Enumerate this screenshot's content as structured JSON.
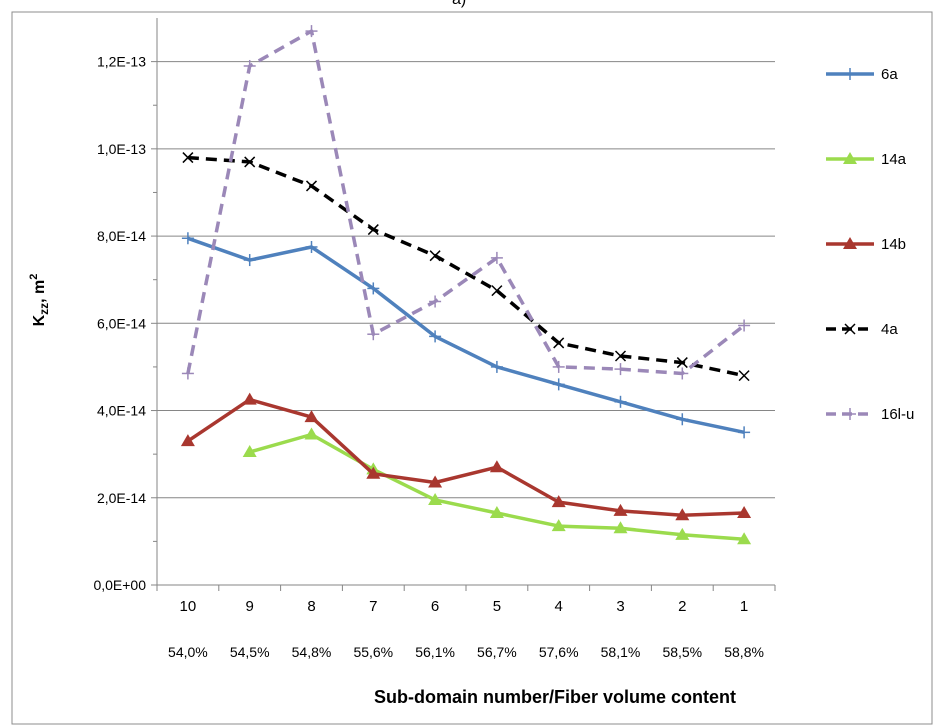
{
  "panel_label": "a)",
  "chart_data": {
    "type": "line",
    "title": "",
    "xlabel": "Sub-domain number/Fiber volume content",
    "ylabel_main": "K",
    "ylabel_sub": "zz",
    "ylabel_rest": ", m",
    "ylabel_sup": "2",
    "categories": [
      "10",
      "9",
      "8",
      "7",
      "6",
      "5",
      "4",
      "3",
      "2",
      "1"
    ],
    "secondary_categories": [
      "54,0%",
      "54,5%",
      "54,8%",
      "55,6%",
      "56,1%",
      "56,7%",
      "57,6%",
      "58,1%",
      "58,5%",
      "58,8%"
    ],
    "ylim": [
      0,
      1.3e-13
    ],
    "yticks": [
      0,
      2e-14,
      4e-14,
      6e-14,
      8e-14,
      1e-13,
      1.2e-13
    ],
    "ytick_labels": [
      "0,0E+00",
      "2,0E-14",
      "4,0E-14",
      "6,0E-14",
      "8,0E-14",
      "1,0E-13",
      "1,2E-13"
    ],
    "grid": true,
    "legend_position": "right",
    "series": [
      {
        "name": "6a",
        "color": "#4f81bd",
        "dash": "solid",
        "marker": "plus",
        "values": [
          7.95e-14,
          7.45e-14,
          7.75e-14,
          6.8e-14,
          5.7e-14,
          5e-14,
          4.6e-14,
          4.2e-14,
          3.8e-14,
          3.5e-14
        ]
      },
      {
        "name": "14a",
        "color": "#9bdb4d",
        "dash": "solid",
        "marker": "triangle",
        "values": [
          null,
          3.05e-14,
          3.45e-14,
          2.65e-14,
          1.95e-14,
          1.65e-14,
          1.35e-14,
          1.3e-14,
          1.15e-14,
          1.05e-14
        ]
      },
      {
        "name": "14b",
        "color": "#a9372f",
        "dash": "solid",
        "marker": "triangle",
        "values": [
          3.3e-14,
          4.25e-14,
          3.85e-14,
          2.55e-14,
          2.35e-14,
          2.7e-14,
          1.9e-14,
          1.7e-14,
          1.6e-14,
          1.65e-14
        ]
      },
      {
        "name": "4a",
        "color": "#000000",
        "dash": "dashed",
        "marker": "x",
        "values": [
          9.8e-14,
          9.7e-14,
          9.15e-14,
          8.15e-14,
          7.55e-14,
          6.75e-14,
          5.55e-14,
          5.25e-14,
          5.1e-14,
          4.8e-14
        ]
      },
      {
        "name": "16l-u",
        "color": "#9b88b8",
        "dash": "dashed",
        "marker": "plus",
        "values": [
          4.85e-14,
          1.19e-13,
          1.27e-13,
          5.75e-14,
          6.5e-14,
          7.5e-14,
          5e-14,
          4.95e-14,
          4.85e-14,
          5.95e-14
        ]
      }
    ]
  }
}
